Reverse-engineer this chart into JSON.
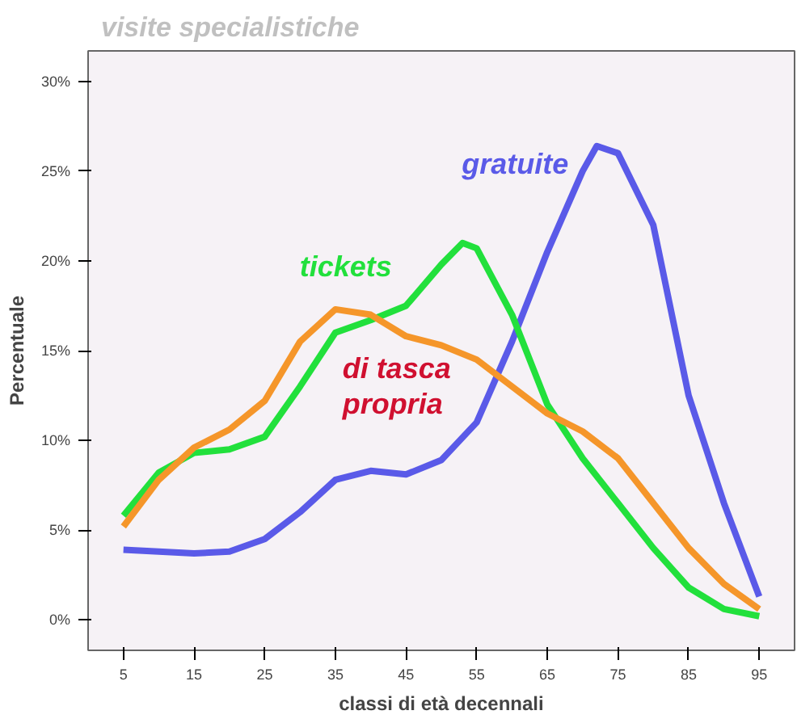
{
  "chart_data": {
    "type": "line",
    "title": "visite specialistiche",
    "xlabel": "classi di età decennali",
    "ylabel": "Percentuale",
    "x": [
      5,
      10,
      15,
      20,
      25,
      30,
      35,
      40,
      45,
      50,
      55,
      60,
      65,
      70,
      72,
      75,
      80,
      85,
      90,
      95
    ],
    "xlim": [
      0,
      100
    ],
    "xticks": [
      5,
      15,
      25,
      35,
      45,
      55,
      65,
      75,
      85,
      95
    ],
    "ylim": [
      -1.7,
      31.7
    ],
    "yticks": [
      {
        "value": 0,
        "label": "0%"
      },
      {
        "value": 5,
        "label": "5%"
      },
      {
        "value": 10,
        "label": "10%"
      },
      {
        "value": 15,
        "label": "15%"
      },
      {
        "value": 20,
        "label": "20%"
      },
      {
        "value": 25,
        "label": "25%"
      },
      {
        "value": 30,
        "label": "30%"
      }
    ],
    "grid": false,
    "marker": "none",
    "line_style": "solid",
    "series": [
      {
        "name": "gratuite",
        "color": "#5a5ae8",
        "values": [
          3.9,
          3.8,
          3.7,
          3.8,
          4.5,
          6.0,
          7.8,
          8.3,
          8.1,
          8.9,
          11.0,
          15.5,
          20.5,
          25.0,
          26.4,
          26.0,
          22.0,
          12.5,
          6.5,
          1.3
        ]
      },
      {
        "name": "tickets",
        "color": "#22e03c",
        "x": [
          5,
          10,
          15,
          20,
          25,
          30,
          35,
          40,
          45,
          50,
          53,
          55,
          60,
          65,
          70,
          75,
          80,
          85,
          90,
          95
        ],
        "values": [
          5.8,
          8.2,
          9.3,
          9.5,
          10.2,
          13.0,
          16.0,
          16.7,
          17.5,
          19.8,
          21.0,
          20.7,
          17.0,
          12.0,
          9.0,
          6.5,
          4.0,
          1.8,
          0.6,
          0.2
        ]
      },
      {
        "name": "di tasca propria",
        "color": "#f5962a",
        "x": [
          5,
          10,
          15,
          20,
          25,
          30,
          35,
          40,
          45,
          50,
          55,
          60,
          65,
          70,
          75,
          80,
          85,
          90,
          95
        ],
        "values": [
          5.2,
          7.8,
          9.6,
          10.6,
          12.2,
          15.5,
          17.3,
          17.0,
          15.8,
          15.3,
          14.5,
          13.0,
          11.5,
          10.5,
          9.0,
          6.5,
          4.0,
          2.0,
          0.6
        ]
      }
    ]
  }
}
